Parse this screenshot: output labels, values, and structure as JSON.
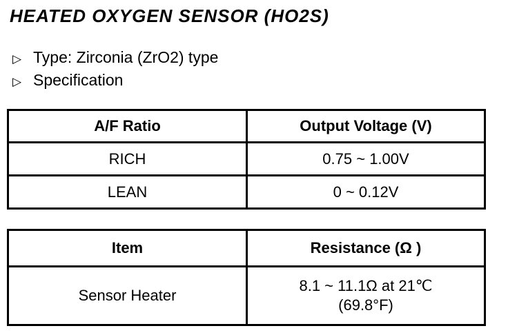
{
  "page": {
    "title": "HEATED OXYGEN SENSOR (HO2S)"
  },
  "bullets": {
    "marker": "▷",
    "items": [
      {
        "label": "Type: Zirconia (ZrO2) type"
      },
      {
        "label": "Specification"
      }
    ]
  },
  "af_table": {
    "headers": [
      "A/F Ratio",
      "Output Voltage (V)"
    ],
    "rows": [
      {
        "ratio": "RICH",
        "voltage": "0.75 ~ 1.00V"
      },
      {
        "ratio": "LEAN",
        "voltage": "0 ~ 0.12V"
      }
    ]
  },
  "resistance_table": {
    "headers": [
      "Item",
      "Resistance (Ω )"
    ],
    "row": {
      "item": "Sensor Heater",
      "value_line1": "8.1 ~ 11.1Ω  at 21℃",
      "value_line2": "(69.8°F)"
    }
  }
}
